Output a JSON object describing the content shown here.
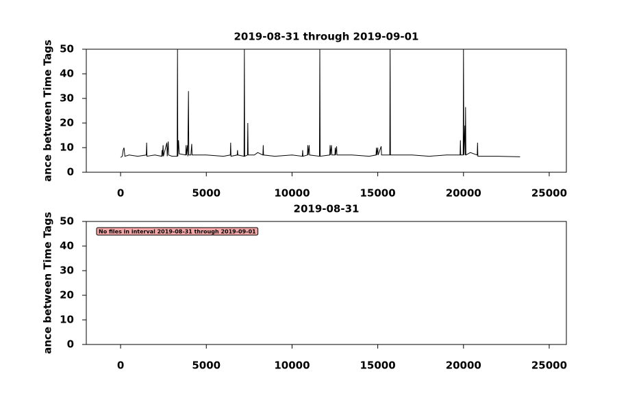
{
  "chart_data": [
    {
      "type": "line",
      "title": "2019-08-31 through 2019-09-01",
      "ylabel": "ance between Time Tags",
      "color": "#000000",
      "xlim": [
        -2000,
        26000
      ],
      "ylim": [
        0,
        50
      ],
      "xticks": [
        0,
        5000,
        10000,
        15000,
        20000,
        25000
      ],
      "yticks": [
        0,
        10,
        20,
        30,
        40,
        50
      ],
      "x": [
        0,
        100,
        150,
        200,
        250,
        500,
        1000,
        1500,
        1520,
        1540,
        2000,
        2400,
        2420,
        2440,
        2480,
        2500,
        2700,
        2720,
        2780,
        2800,
        3000,
        3300,
        3320,
        3340,
        3380,
        3420,
        3800,
        3820,
        3840,
        3900,
        3920,
        3960,
        3980,
        4100,
        4150,
        4170,
        5000,
        6000,
        6400,
        6420,
        6440,
        6800,
        6820,
        6840,
        7200,
        7220,
        7240,
        7400,
        7420,
        7440,
        7800,
        8000,
        8300,
        8320,
        8340,
        9000,
        10000,
        10600,
        10620,
        10640,
        10900,
        10920,
        10940,
        11000,
        11020,
        11600,
        11620,
        11640,
        12200,
        12220,
        12240,
        12300,
        12320,
        12500,
        12520,
        12540,
        12600,
        12620,
        13500,
        14500,
        14900,
        14920,
        14940,
        15000,
        15020,
        15200,
        15220,
        15700,
        15720,
        15740,
        17000,
        18000,
        19000,
        19800,
        19820,
        19840,
        19980,
        20000,
        20020,
        20080,
        20100,
        20120,
        20140,
        20400,
        20800,
        20820,
        20840,
        22000,
        23300
      ],
      "values": [
        6,
        6.5,
        9,
        10,
        6.5,
        7,
        6.5,
        7,
        12,
        6.5,
        7,
        6.5,
        9,
        6.5,
        11,
        6.5,
        12,
        6.5,
        12.5,
        7,
        6.5,
        6.5,
        50,
        6.5,
        13,
        7.5,
        7,
        11,
        7,
        11,
        6.5,
        33,
        7,
        7,
        11.5,
        7,
        7,
        6.5,
        7,
        12,
        6.5,
        7,
        9,
        7,
        6.5,
        50,
        6.5,
        7,
        20,
        7,
        7,
        8,
        7,
        11,
        7,
        6.5,
        7,
        6.5,
        9,
        6.5,
        7,
        11,
        7,
        11,
        7,
        6.5,
        50,
        6.5,
        7,
        11,
        7,
        11,
        7,
        7,
        10,
        7,
        10.5,
        7,
        7,
        6.5,
        7,
        10,
        7,
        10,
        7,
        10.5,
        7,
        7,
        50,
        7,
        7,
        6.5,
        7,
        7,
        13,
        7,
        7,
        50,
        7,
        19,
        7,
        26.5,
        7,
        8,
        7,
        12,
        6.5,
        6.5,
        6.3
      ]
    },
    {
      "type": "line",
      "title": "2019-08-31",
      "ylabel": "ance between Time Tags",
      "annotation": "No files in interval 2019-08-31 through 2019-09-01",
      "xlim": [
        -2000,
        26000
      ],
      "ylim": [
        0,
        50
      ],
      "xticks": [
        0,
        5000,
        10000,
        15000,
        20000,
        25000
      ],
      "yticks": [
        0,
        10,
        20,
        30,
        40,
        50
      ]
    }
  ]
}
